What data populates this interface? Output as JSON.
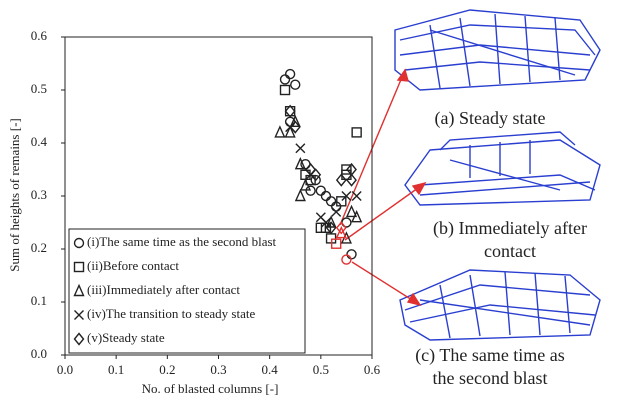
{
  "chart_data": {
    "type": "scatter",
    "xlabel": "No. of blasted columns [-]",
    "ylabel": "Sum of heights of remains [-]",
    "xlim": [
      0,
      0.6
    ],
    "ylim": [
      0,
      0.6
    ],
    "xticks": [
      {
        "value": 0,
        "label": "0.0"
      },
      {
        "value": 0.1,
        "label": "0.1"
      },
      {
        "value": 0.2,
        "label": "0.2"
      },
      {
        "value": 0.3,
        "label": "0.3"
      },
      {
        "value": 0.4,
        "label": "0.4"
      },
      {
        "value": 0.5,
        "label": "0.5"
      },
      {
        "value": 0.6,
        "label": "0.6"
      }
    ],
    "yticks": [
      {
        "value": 0,
        "label": "0.0"
      },
      {
        "value": 0.1,
        "label": "0.1"
      },
      {
        "value": 0.2,
        "label": "0.2"
      },
      {
        "value": 0.3,
        "label": "0.3"
      },
      {
        "value": 0.4,
        "label": "0.4"
      },
      {
        "value": 0.5,
        "label": "0.5"
      },
      {
        "value": 0.6,
        "label": "0.6"
      }
    ],
    "legend": "lower left",
    "highlight_color": "#e03030",
    "series": [
      {
        "name": "(i)The same time as the second blast",
        "marker": "circle",
        "color": "#222222",
        "x": [
          0.44,
          0.43,
          0.45,
          0.44,
          0.47,
          0.49,
          0.48,
          0.5,
          0.51,
          0.52,
          0.53,
          0.55,
          0.56,
          0.55
        ],
        "values": [
          0.53,
          0.52,
          0.51,
          0.44,
          0.36,
          0.33,
          0.31,
          0.31,
          0.3,
          0.29,
          0.28,
          0.25,
          0.19,
          0.18
        ],
        "highlight_indices": [
          13
        ]
      },
      {
        "name": "(ii)Before contact",
        "marker": "square",
        "color": "#222222",
        "x": [
          0.43,
          0.44,
          0.47,
          0.48,
          0.5,
          0.51,
          0.52,
          0.53,
          0.55,
          0.57,
          0.54,
          0.55
        ],
        "values": [
          0.5,
          0.46,
          0.34,
          0.33,
          0.24,
          0.24,
          0.22,
          0.21,
          0.35,
          0.42,
          0.29,
          0.34
        ],
        "highlight_indices": [
          7
        ]
      },
      {
        "name": "(iii)Immediately after contact",
        "marker": "triangle",
        "color": "#222222",
        "x": [
          0.42,
          0.44,
          0.45,
          0.46,
          0.47,
          0.46,
          0.52,
          0.55,
          0.56,
          0.54,
          0.57
        ],
        "values": [
          0.42,
          0.42,
          0.44,
          0.36,
          0.32,
          0.3,
          0.25,
          0.22,
          0.27,
          0.23,
          0.26
        ],
        "highlight_indices": [
          9
        ]
      },
      {
        "name": "(iv)The transition to steady state",
        "marker": "x",
        "color": "#222222",
        "x": [
          0.44,
          0.46,
          0.48,
          0.5,
          0.51,
          0.53,
          0.55,
          0.57
        ],
        "values": [
          0.43,
          0.39,
          0.34,
          0.26,
          0.25,
          0.27,
          0.3,
          0.3
        ],
        "highlight_indices": []
      },
      {
        "name": "(v)Steady state",
        "marker": "diamond",
        "color": "#222222",
        "x": [
          0.44,
          0.45,
          0.48,
          0.49,
          0.52,
          0.54,
          0.56,
          0.56,
          0.54
        ],
        "values": [
          0.46,
          0.43,
          0.35,
          0.34,
          0.24,
          0.33,
          0.33,
          0.35,
          0.24
        ],
        "highlight_indices": [
          8
        ]
      }
    ],
    "annotations": [
      {
        "lines": [
          "(a) Steady state"
        ]
      },
      {
        "lines": [
          "(b) Immediately after",
          "contact"
        ]
      },
      {
        "lines": [
          "(c) The same time as",
          "the second blast"
        ]
      }
    ]
  }
}
